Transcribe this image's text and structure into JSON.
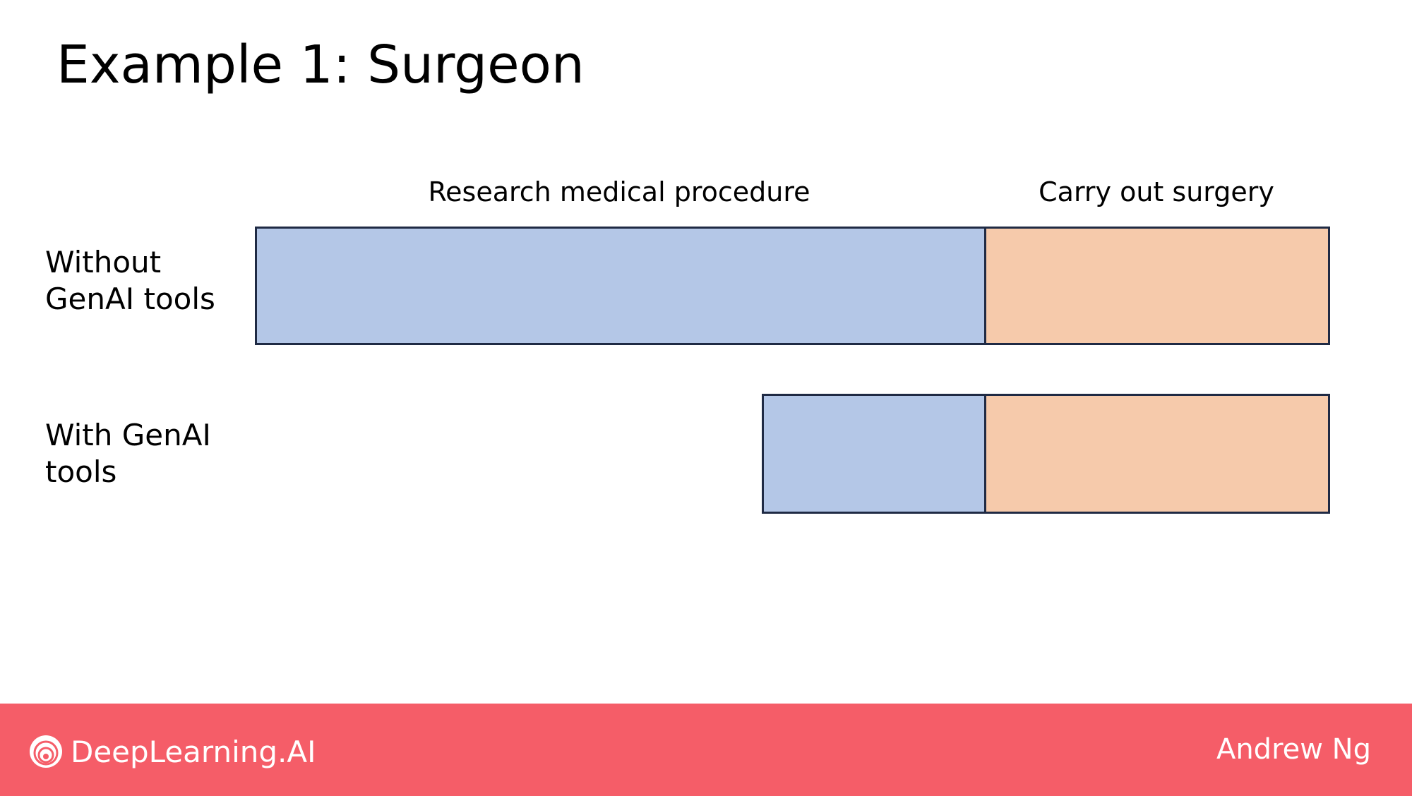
{
  "slide": {
    "title": "Example 1: Surgeon"
  },
  "columns": {
    "research": "Research medical procedure",
    "surgery": "Carry out surgery"
  },
  "rows": [
    {
      "label_line1": "Without",
      "label_line2": "GenAI  tools"
    },
    {
      "label_line1": "With GenAI",
      "label_line2": "tools"
    }
  ],
  "colors": {
    "research_fill": "#b4c7e7",
    "surgery_fill": "#f6caab",
    "bar_border": "#1f2a44",
    "footer_bg": "#f55d68",
    "footer_text": "#ffffff"
  },
  "footer": {
    "logo_icon": "deeplearning-ai-logo-icon",
    "brand": "DeepLearning.AI",
    "author": "Andrew Ng"
  }
}
